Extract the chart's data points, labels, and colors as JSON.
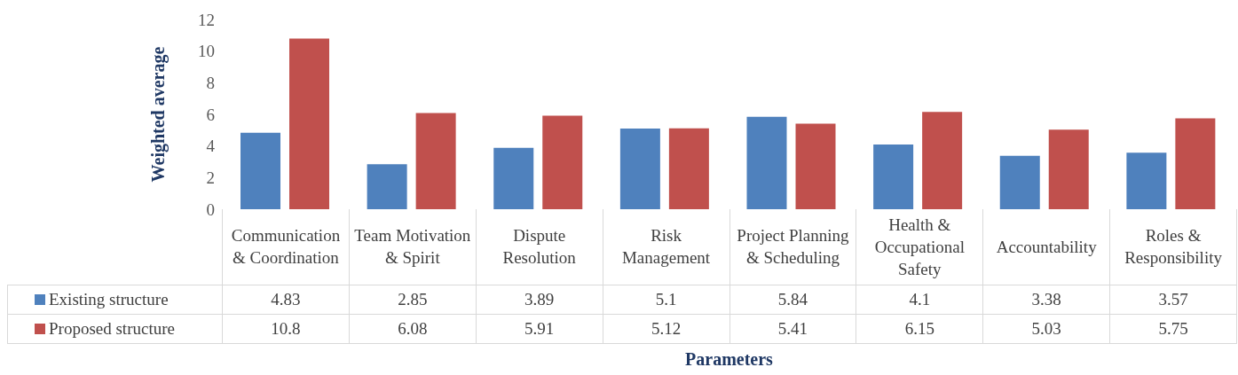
{
  "chart_data": {
    "type": "bar",
    "xlabel": "Parameters",
    "ylabel": "Weighted average",
    "categories": [
      "Communication & Coordination",
      "Team Motivation & Spirit",
      "Dispute Resolution",
      "Risk Management",
      "Project Planning & Scheduling",
      "Health & Occupational Safety",
      "Accountability",
      "Roles & Responsibility"
    ],
    "series": [
      {
        "name": "Existing structure",
        "color": "#4f81bd",
        "values": [
          4.83,
          2.85,
          3.89,
          5.1,
          5.84,
          4.1,
          3.38,
          3.57
        ]
      },
      {
        "name": "Proposed structure",
        "color": "#c0504d",
        "values": [
          10.8,
          6.08,
          5.91,
          5.12,
          5.41,
          6.15,
          5.03,
          5.75
        ]
      }
    ],
    "ylim": [
      0,
      12
    ],
    "yticks": [
      0,
      2,
      4,
      6,
      8,
      10,
      12
    ],
    "data_labels": true,
    "legend": "bottom"
  }
}
